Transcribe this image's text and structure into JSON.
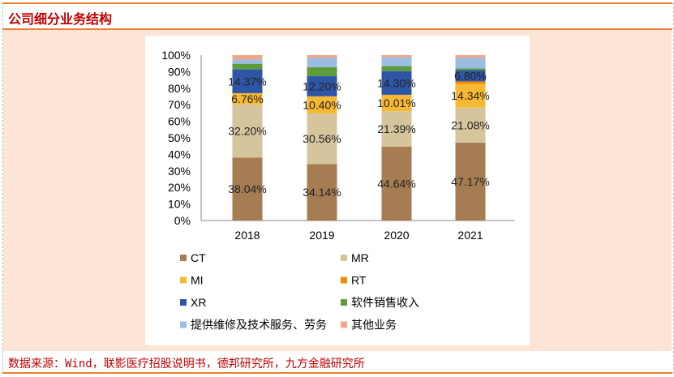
{
  "title": "公司细分业务结构",
  "source": "数据来源：Wind，联影医疗招股说明书，德邦研究所，九方金融研究所",
  "chart_data": {
    "type": "bar",
    "stacked": true,
    "categories": [
      "2018",
      "2019",
      "2020",
      "2021"
    ],
    "yticks": [
      "0%",
      "10%",
      "20%",
      "30%",
      "40%",
      "50%",
      "60%",
      "70%",
      "80%",
      "90%",
      "100%"
    ],
    "ylim": [
      0,
      100
    ],
    "legend_position": "bottom",
    "series": [
      {
        "name": "CT",
        "color": "#a67c52",
        "values": [
          38.04,
          34.14,
          44.64,
          47.17
        ],
        "labels": [
          "38.04%",
          "34.14%",
          "44.64%",
          "47.17%"
        ]
      },
      {
        "name": "MR",
        "color": "#d5c49c",
        "values": [
          32.2,
          30.56,
          21.39,
          21.08
        ],
        "labels": [
          "32.20%",
          "30.56%",
          "21.39%",
          "21.08%"
        ]
      },
      {
        "name": "MI",
        "color": "#f7b934",
        "values": [
          6.76,
          10.4,
          10.01,
          14.34
        ],
        "labels": [
          "6.76%",
          "10.40%",
          "10.01%",
          "14.34%"
        ]
      },
      {
        "name": "RT",
        "color": "#f08c00",
        "values": [
          0,
          0,
          0,
          1.5
        ],
        "labels": [
          "",
          "",
          "",
          ""
        ]
      },
      {
        "name": "XR",
        "color": "#2f56a6",
        "values": [
          14.37,
          12.2,
          14.3,
          6.8
        ],
        "labels": [
          "14.37%",
          "12.20%",
          "14.30%",
          "6.80%"
        ]
      },
      {
        "name": "软件销售收入",
        "color": "#5e9b3b",
        "values": [
          3.4,
          5.4,
          3.0,
          1.1
        ],
        "labels": [
          "",
          "",
          "",
          ""
        ]
      },
      {
        "name": "提供维修及技术服务、劳务",
        "color": "#9cbde2",
        "values": [
          2.6,
          5.7,
          5.3,
          6.4
        ],
        "labels": [
          "",
          "",
          "",
          ""
        ]
      },
      {
        "name": "其他业务",
        "color": "#f2a58b",
        "values": [
          2.63,
          1.6,
          1.36,
          1.6
        ],
        "labels": [
          "",
          "",
          "",
          ""
        ]
      }
    ]
  }
}
